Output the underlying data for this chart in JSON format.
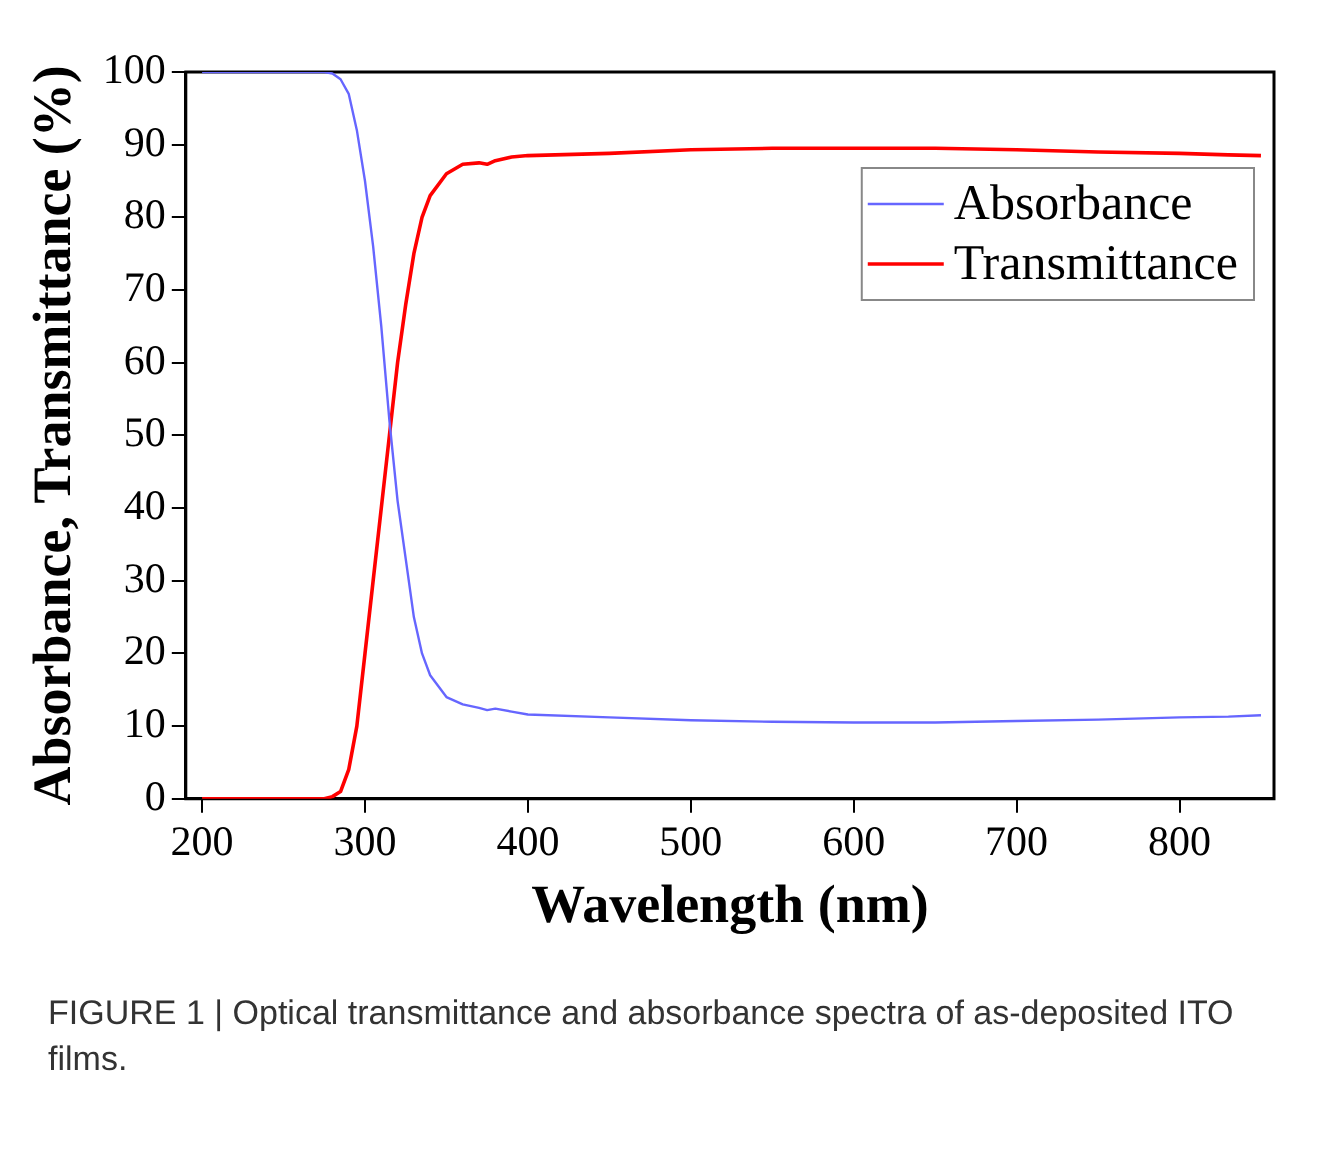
{
  "chart_data": {
    "type": "line",
    "xlabel": "Wavelength (nm)",
    "ylabel": "Absorbance, Transmittance (%)",
    "annotations": [
      "FIGURE 1 | Optical transmittance and absorbance spectra of as-deposited ITO films."
    ],
    "x": [
      200,
      250,
      275,
      280,
      285,
      290,
      295,
      300,
      305,
      310,
      315,
      320,
      325,
      330,
      335,
      340,
      350,
      360,
      370,
      375,
      380,
      390,
      400,
      450,
      500,
      550,
      600,
      650,
      700,
      750,
      800,
      830,
      850
    ],
    "series": [
      {
        "name": "Absorbance",
        "color": "#6666ff",
        "values": [
          100,
          100,
          100,
          99.8,
          99,
          97,
          92,
          85,
          76,
          65,
          52,
          41,
          33,
          25,
          20,
          17,
          14,
          13,
          12.5,
          12.2,
          12.4,
          12,
          11.6,
          11.2,
          10.8,
          10.6,
          10.5,
          10.5,
          10.7,
          10.9,
          11.2,
          11.3,
          11.5
        ]
      },
      {
        "name": "Transmittance",
        "color": "#ff0000",
        "values": [
          0,
          0,
          0,
          0.3,
          1,
          4,
          10,
          20,
          30,
          40,
          50,
          60,
          68,
          75,
          80,
          83,
          86,
          87.3,
          87.5,
          87.3,
          87.8,
          88.3,
          88.5,
          88.8,
          89.3,
          89.5,
          89.5,
          89.5,
          89.3,
          89.0,
          88.8,
          88.6,
          88.5
        ]
      }
    ],
    "xlim": [
      190,
      858
    ],
    "xticks": [
      200,
      300,
      400,
      500,
      600,
      700,
      800
    ],
    "ylim": [
      0,
      100
    ],
    "yticks": [
      0,
      10,
      20,
      30,
      40,
      50,
      60,
      70,
      80,
      90,
      100
    ],
    "grid": false,
    "legend": "top right",
    "marker": "none",
    "line_style": "solid"
  }
}
